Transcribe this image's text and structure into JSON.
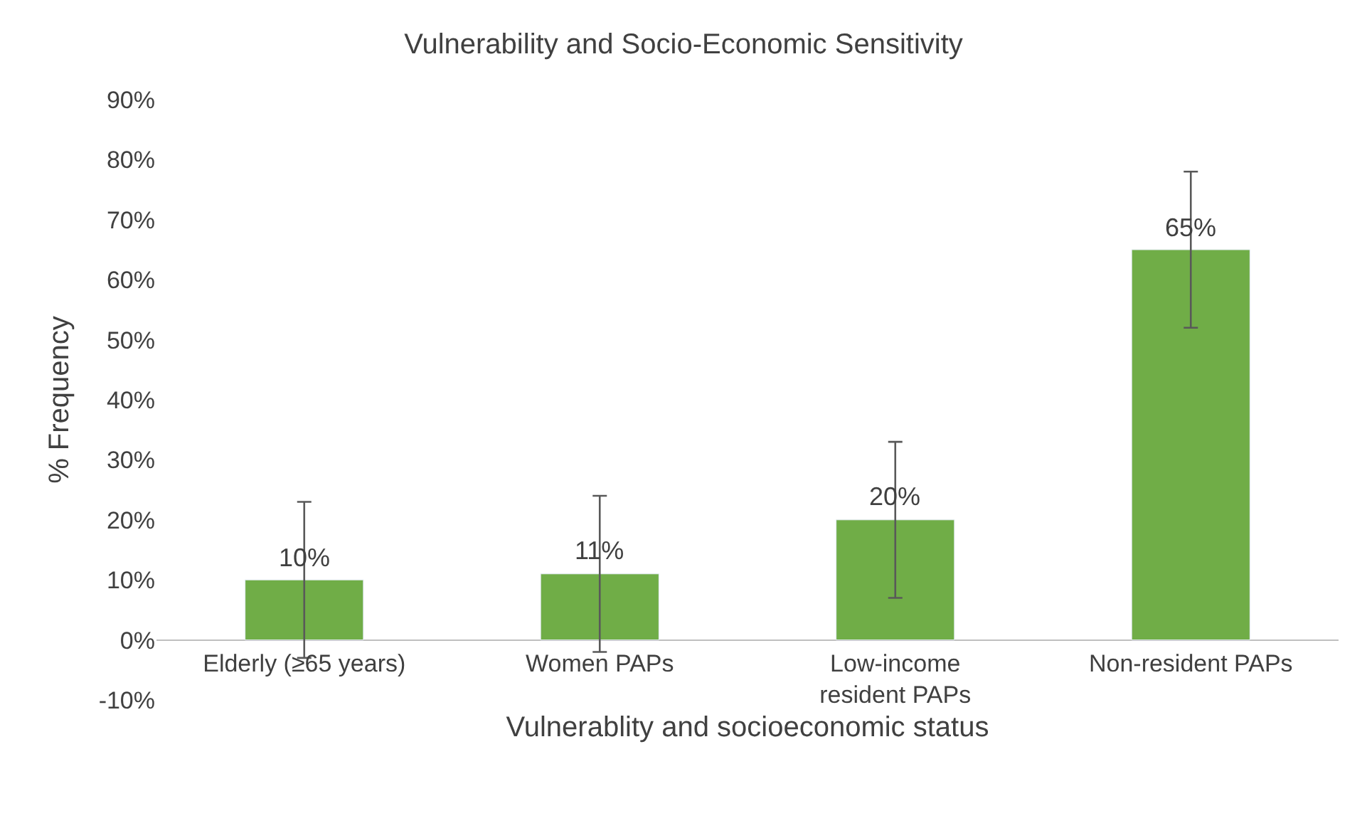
{
  "chart_data": {
    "type": "bar",
    "title": "Vulnerability and Socio-Economic Sensitivity",
    "xlabel": "Vulnerablity and socioeconomic status",
    "ylabel": "% Frequency",
    "categories": [
      "Elderly (≥65 years)",
      "Women PAPs",
      "Low-income resident PAPs",
      "Non-resident PAPs"
    ],
    "values": [
      10,
      11,
      20,
      65
    ],
    "color": "#70ad47",
    "errors": [
      13,
      13,
      13,
      13
    ],
    "value_labels": [
      "10%",
      "11%",
      "20%",
      "65%"
    ],
    "ylim": [
      -10,
      90
    ],
    "yticks": [
      {
        "value": -10,
        "label": "-10%"
      },
      {
        "value": 0,
        "label": "0%"
      },
      {
        "value": 10,
        "label": "10%"
      },
      {
        "value": 20,
        "label": "20%"
      },
      {
        "value": 30,
        "label": "30%"
      },
      {
        "value": 40,
        "label": "40%"
      },
      {
        "value": 50,
        "label": "50%"
      },
      {
        "value": 60,
        "label": "60%"
      },
      {
        "value": 70,
        "label": "70%"
      },
      {
        "value": 80,
        "label": "80%"
      },
      {
        "value": 90,
        "label": "90%"
      }
    ],
    "legend": false
  }
}
